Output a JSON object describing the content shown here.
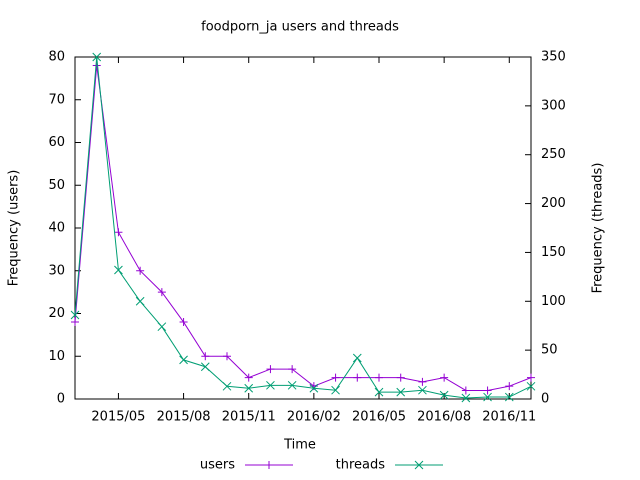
{
  "chart_data": {
    "type": "line",
    "title": "foodporn_ja users and threads",
    "x_label": "Time",
    "y_label": "Frequency (users)",
    "y2_label": "Frequency (threads)",
    "x": [
      "2015/03",
      "2015/04",
      "2015/05",
      "2015/06",
      "2015/07",
      "2015/08",
      "2015/09",
      "2015/10",
      "2015/11",
      "2015/12",
      "2016/01",
      "2016/02",
      "2016/03",
      "2016/04",
      "2016/05",
      "2016/06",
      "2016/07",
      "2016/08",
      "2016/09",
      "2016/10",
      "2016/11",
      "2016/12"
    ],
    "xlim": [
      "2015/03",
      "2016/12"
    ],
    "xticks": [
      "2015/05",
      "2015/08",
      "2015/11",
      "2016/02",
      "2016/05",
      "2016/08",
      "2016/11"
    ],
    "ylim": [
      0,
      80
    ],
    "yticks": [
      0,
      10,
      20,
      30,
      40,
      50,
      60,
      70,
      80
    ],
    "y2lim": [
      0,
      350
    ],
    "y2ticks": [
      0,
      50,
      100,
      150,
      200,
      250,
      300,
      350
    ],
    "legend": "bottom",
    "series": [
      {
        "name": "users",
        "color": "#9400d3",
        "marker": "plus",
        "values": [
          18,
          78,
          39,
          30,
          25,
          18,
          10,
          10,
          5,
          7,
          7,
          3,
          5,
          5,
          5,
          5,
          4,
          5,
          2,
          2,
          3,
          5
        ]
      },
      {
        "name": "threads",
        "color": "#009e73",
        "marker": "cross",
        "axis": "y2",
        "values": [
          86,
          350,
          132,
          100,
          74,
          40,
          33,
          13,
          11,
          14,
          14,
          11,
          9,
          42,
          7,
          7,
          9,
          4,
          1,
          2,
          2,
          13
        ]
      }
    ]
  }
}
